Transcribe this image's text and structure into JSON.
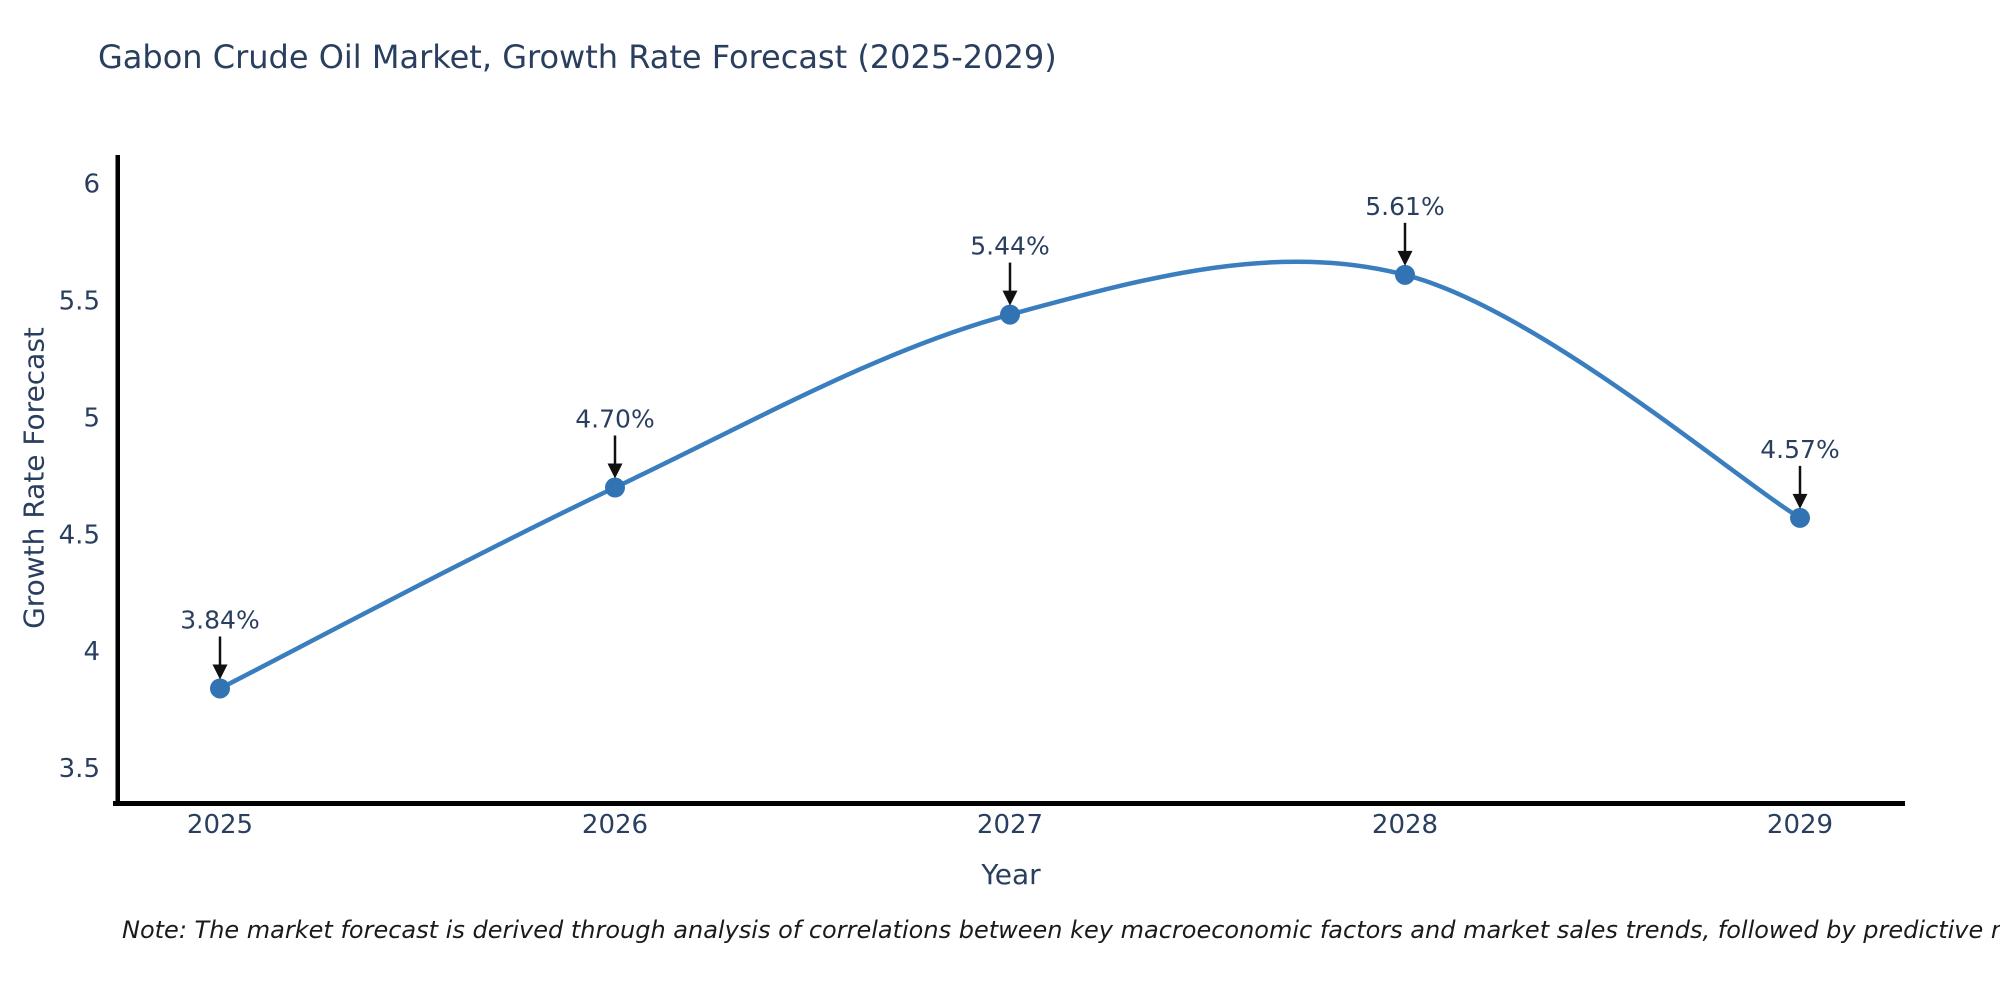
{
  "figure": {
    "note": "Note: The market forecast is derived through analysis of correlations between key macroeconomic factors and market sales trends, followed by predictive modeling to project future sales"
  },
  "chart_data": {
    "type": "line",
    "line_shape": "spline",
    "title": "Gabon Crude Oil Market, Growth Rate Forecast (2025-2029)",
    "xlabel": "Year",
    "ylabel": "Growth Rate Forecast",
    "categories": [
      "2025",
      "2026",
      "2027",
      "2028",
      "2029"
    ],
    "series": [
      {
        "name": "Growth Rate Forecast",
        "values": [
          3.84,
          4.7,
          5.44,
          5.61,
          4.57
        ]
      }
    ],
    "point_labels": [
      "3.84%",
      "4.70%",
      "5.44%",
      "5.61%",
      "4.57%"
    ],
    "ytick_labels": [
      "3.5",
      "4",
      "4.5",
      "5",
      "5.5",
      "6"
    ],
    "ytick_values": [
      3.5,
      4,
      4.5,
      5,
      5.5,
      6
    ],
    "ylim": [
      3.35,
      6.11
    ],
    "grid": false,
    "legend": "none",
    "marker": "circle",
    "annotation_arrows": true,
    "colors": {
      "line": "#3a7ebf",
      "marker": "#3274b3",
      "axis": "#000000",
      "tick_text": "#2a3f5f",
      "annotation_text": "#2a3f5f",
      "annotation_arrow": "#111111",
      "title_text": "#2a3f5f",
      "note_text": "#1a1a1a",
      "background": "#ffffff"
    }
  }
}
